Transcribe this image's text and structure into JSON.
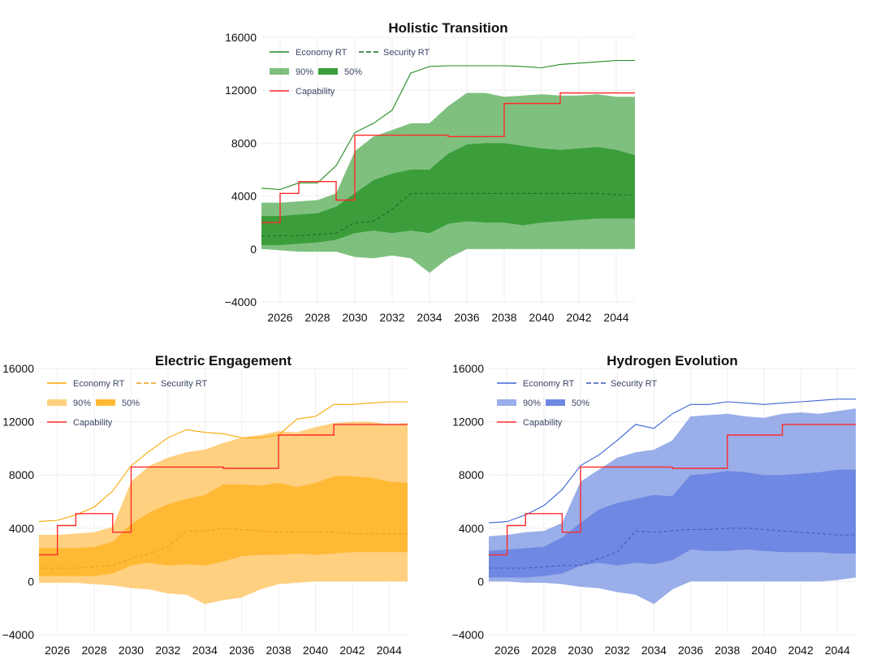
{
  "chart_data": [
    {
      "type": "area",
      "title": "Holistic Transition",
      "xlabel": "",
      "ylabel": "",
      "xlim": [
        2025,
        2045
      ],
      "ylim": [
        -4000,
        16000
      ],
      "x_ticks": [
        "2026",
        "2028",
        "2030",
        "2032",
        "2034",
        "2036",
        "2038",
        "2040",
        "2042",
        "2044"
      ],
      "y_ticks": [
        "16000",
        "12000",
        "8000",
        "4000",
        "0",
        "−4000"
      ],
      "grid": true,
      "legend_position": "top-left",
      "colors": {
        "main": "#228b22",
        "band90": "#7fc07f",
        "band50": "#3b9e3b",
        "capability": "#ff2a2a"
      },
      "legend": {
        "economy": "Economy RT",
        "security": "Security RT",
        "band90": "90%",
        "band50": "50%",
        "capability": "Capability"
      },
      "x": [
        2025,
        2026,
        2027,
        2028,
        2029,
        2030,
        2031,
        2032,
        2033,
        2034,
        2035,
        2036,
        2037,
        2038,
        2039,
        2040,
        2041,
        2042,
        2043,
        2044,
        2045
      ],
      "series": [
        {
          "name": "Economy RT",
          "style": "solid",
          "values": [
            4600,
            4500,
            5000,
            5000,
            6300,
            8800,
            9500,
            10500,
            13300,
            13800,
            13850,
            13850,
            13850,
            13850,
            13800,
            13700,
            13950,
            14050,
            14150,
            14250,
            14250
          ]
        },
        {
          "name": "Security RT",
          "style": "dashed",
          "values": [
            1000,
            1000,
            1000,
            1100,
            1200,
            2000,
            2100,
            3000,
            4200,
            4200,
            4200,
            4200,
            4200,
            4200,
            4200,
            4200,
            4200,
            4200,
            4200,
            4100,
            4100
          ]
        },
        {
          "name": "Capability",
          "style": "step",
          "values": [
            2000,
            4200,
            5100,
            5100,
            3700,
            8600,
            8600,
            8600,
            8600,
            8600,
            8500,
            8500,
            8500,
            11000,
            11000,
            11000,
            11800,
            11800,
            11800,
            11800,
            11800
          ]
        }
      ],
      "band90": {
        "name": "90%",
        "lower": [
          0,
          -100,
          -200,
          -200,
          -200,
          -600,
          -700,
          -500,
          -700,
          -1800,
          -700,
          0,
          0,
          0,
          0,
          0,
          0,
          0,
          0,
          0,
          0
        ],
        "upper": [
          3500,
          3500,
          3600,
          3700,
          4200,
          7400,
          8500,
          9000,
          9500,
          9500,
          10800,
          11800,
          11800,
          11500,
          11600,
          11700,
          11600,
          11600,
          11700,
          11500,
          11500
        ]
      },
      "band50": {
        "name": "50%",
        "lower": [
          300,
          300,
          400,
          500,
          700,
          1200,
          1400,
          1200,
          1400,
          1200,
          1900,
          2100,
          2000,
          2000,
          1800,
          2000,
          2100,
          2200,
          2300,
          2300,
          2300
        ],
        "upper": [
          2500,
          2500,
          2600,
          2700,
          3200,
          4200,
          5200,
          5700,
          6000,
          6000,
          7200,
          7900,
          8000,
          8000,
          7800,
          7600,
          7500,
          7600,
          7700,
          7500,
          7100
        ]
      }
    },
    {
      "type": "area",
      "title": "Electric Engagement",
      "xlabel": "",
      "ylabel": "",
      "xlim": [
        2025,
        2045
      ],
      "ylim": [
        -4000,
        16000
      ],
      "x_ticks": [
        "2026",
        "2028",
        "2030",
        "2032",
        "2034",
        "2036",
        "2038",
        "2040",
        "2042",
        "2044"
      ],
      "y_ticks": [
        "16000",
        "12000",
        "8000",
        "4000",
        "0",
        "−4000"
      ],
      "grid": true,
      "legend_position": "top-left",
      "colors": {
        "main": "#f7a800",
        "band90": "#ffd080",
        "band50": "#ffb935",
        "capability": "#ff2a2a"
      },
      "legend": {
        "economy": "Economy RT",
        "security": "Security RT",
        "band90": "90%",
        "band50": "50%",
        "capability": "Capability"
      },
      "x": [
        2025,
        2026,
        2027,
        2028,
        2029,
        2030,
        2031,
        2032,
        2033,
        2034,
        2035,
        2036,
        2037,
        2038,
        2039,
        2040,
        2041,
        2042,
        2043,
        2044,
        2045
      ],
      "series": [
        {
          "name": "Economy RT",
          "style": "solid",
          "values": [
            4500,
            4600,
            5000,
            5600,
            6800,
            8700,
            9800,
            10800,
            11400,
            11200,
            11100,
            10800,
            10800,
            11000,
            12200,
            12400,
            13300,
            13300,
            13400,
            13500,
            13500
          ]
        },
        {
          "name": "Security RT",
          "style": "dashed",
          "values": [
            1000,
            1000,
            1000,
            1100,
            1200,
            1700,
            2100,
            2600,
            3800,
            3800,
            4000,
            3900,
            3800,
            3700,
            3700,
            3700,
            3700,
            3600,
            3600,
            3600,
            3600
          ]
        },
        {
          "name": "Capability",
          "style": "step",
          "values": [
            2000,
            4200,
            5100,
            5100,
            3700,
            8600,
            8600,
            8600,
            8600,
            8600,
            8500,
            8500,
            8500,
            11000,
            11000,
            11000,
            11800,
            11800,
            11800,
            11800,
            11800
          ]
        }
      ],
      "band90": {
        "name": "90%",
        "lower": [
          -100,
          -100,
          -100,
          -200,
          -300,
          -500,
          -600,
          -900,
          -1000,
          -1700,
          -1400,
          -1200,
          -600,
          -200,
          -100,
          0,
          0,
          0,
          0,
          0,
          0
        ],
        "upper": [
          3500,
          3500,
          3600,
          3700,
          4100,
          7500,
          8700,
          9300,
          9700,
          9900,
          10400,
          10800,
          11000,
          11300,
          11200,
          11600,
          11900,
          12000,
          12000,
          11800,
          11900
        ]
      },
      "band50": {
        "name": "50%",
        "lower": [
          400,
          400,
          400,
          400,
          600,
          1200,
          1400,
          1200,
          1300,
          1200,
          1500,
          1900,
          2000,
          2000,
          2100,
          2000,
          2100,
          2200,
          2200,
          2200,
          2200
        ]
      },
      "band50_upper": [
        2500,
        2500,
        2500,
        2600,
        3000,
        4300,
        5200,
        5800,
        6200,
        6500,
        7300,
        7300,
        7200,
        7400,
        7100,
        7400,
        7900,
        7900,
        7800,
        7500,
        7400
      ]
    },
    {
      "type": "area",
      "title": "Hydrogen Evolution",
      "xlabel": "",
      "ylabel": "",
      "xlim": [
        2025,
        2045
      ],
      "ylim": [
        -4000,
        16000
      ],
      "x_ticks": [
        "2026",
        "2028",
        "2030",
        "2032",
        "2034",
        "2036",
        "2038",
        "2040",
        "2042",
        "2044"
      ],
      "y_ticks": [
        "16000",
        "12000",
        "8000",
        "4000",
        "0",
        "−4000"
      ],
      "grid": true,
      "legend_position": "top-left",
      "colors": {
        "main": "#3d64d6",
        "band90": "#9aaee9",
        "band50": "#6f88e3",
        "capability": "#ff2a2a"
      },
      "legend": {
        "economy": "Economy RT",
        "security": "Security RT",
        "band90": "90%",
        "band50": "50%",
        "capability": "Capability"
      },
      "x": [
        2025,
        2026,
        2027,
        2028,
        2029,
        2030,
        2031,
        2032,
        2033,
        2034,
        2035,
        2036,
        2037,
        2038,
        2039,
        2040,
        2041,
        2042,
        2043,
        2044,
        2045
      ],
      "series": [
        {
          "name": "Economy RT",
          "style": "solid",
          "values": [
            4400,
            4500,
            5000,
            5700,
            6900,
            8700,
            9500,
            10600,
            11800,
            11500,
            12600,
            13300,
            13300,
            13500,
            13400,
            13300,
            13400,
            13500,
            13600,
            13700,
            13700
          ]
        },
        {
          "name": "Security RT",
          "style": "dashed",
          "values": [
            1000,
            1000,
            1000,
            1100,
            1200,
            1200,
            1700,
            2200,
            3800,
            3700,
            3800,
            3900,
            3900,
            4000,
            4000,
            3900,
            3800,
            3700,
            3600,
            3500,
            3500
          ]
        },
        {
          "name": "Capability",
          "style": "step",
          "values": [
            2000,
            4200,
            5100,
            5100,
            3700,
            8600,
            8600,
            8600,
            8600,
            8600,
            8500,
            8500,
            8500,
            11000,
            11000,
            11000,
            11800,
            11800,
            11800,
            11800,
            11800
          ]
        }
      ],
      "band90": {
        "name": "90%",
        "lower": [
          0,
          0,
          -100,
          -100,
          -200,
          -400,
          -500,
          -800,
          -1000,
          -1700,
          -600,
          0,
          0,
          0,
          0,
          0,
          0,
          0,
          0,
          100,
          300
        ],
        "upper": [
          3400,
          3500,
          3700,
          3800,
          4400,
          7500,
          8400,
          9300,
          9700,
          9900,
          10600,
          12400,
          12500,
          12600,
          12400,
          12300,
          12600,
          12700,
          12600,
          12800,
          13000
        ]
      },
      "band50": {
        "name": "50%",
        "lower": [
          300,
          300,
          300,
          400,
          600,
          1200,
          1400,
          1200,
          1400,
          1300,
          1600,
          2400,
          2300,
          2300,
          2400,
          2300,
          2200,
          2200,
          2200,
          2100,
          2100
        ]
      },
      "band50_upper": [
        2300,
        2400,
        2500,
        2600,
        3300,
        4400,
        5400,
        5900,
        6200,
        6500,
        6400,
        8000,
        8100,
        8300,
        8200,
        8000,
        8000,
        8100,
        8200,
        8400,
        8400
      ]
    }
  ]
}
